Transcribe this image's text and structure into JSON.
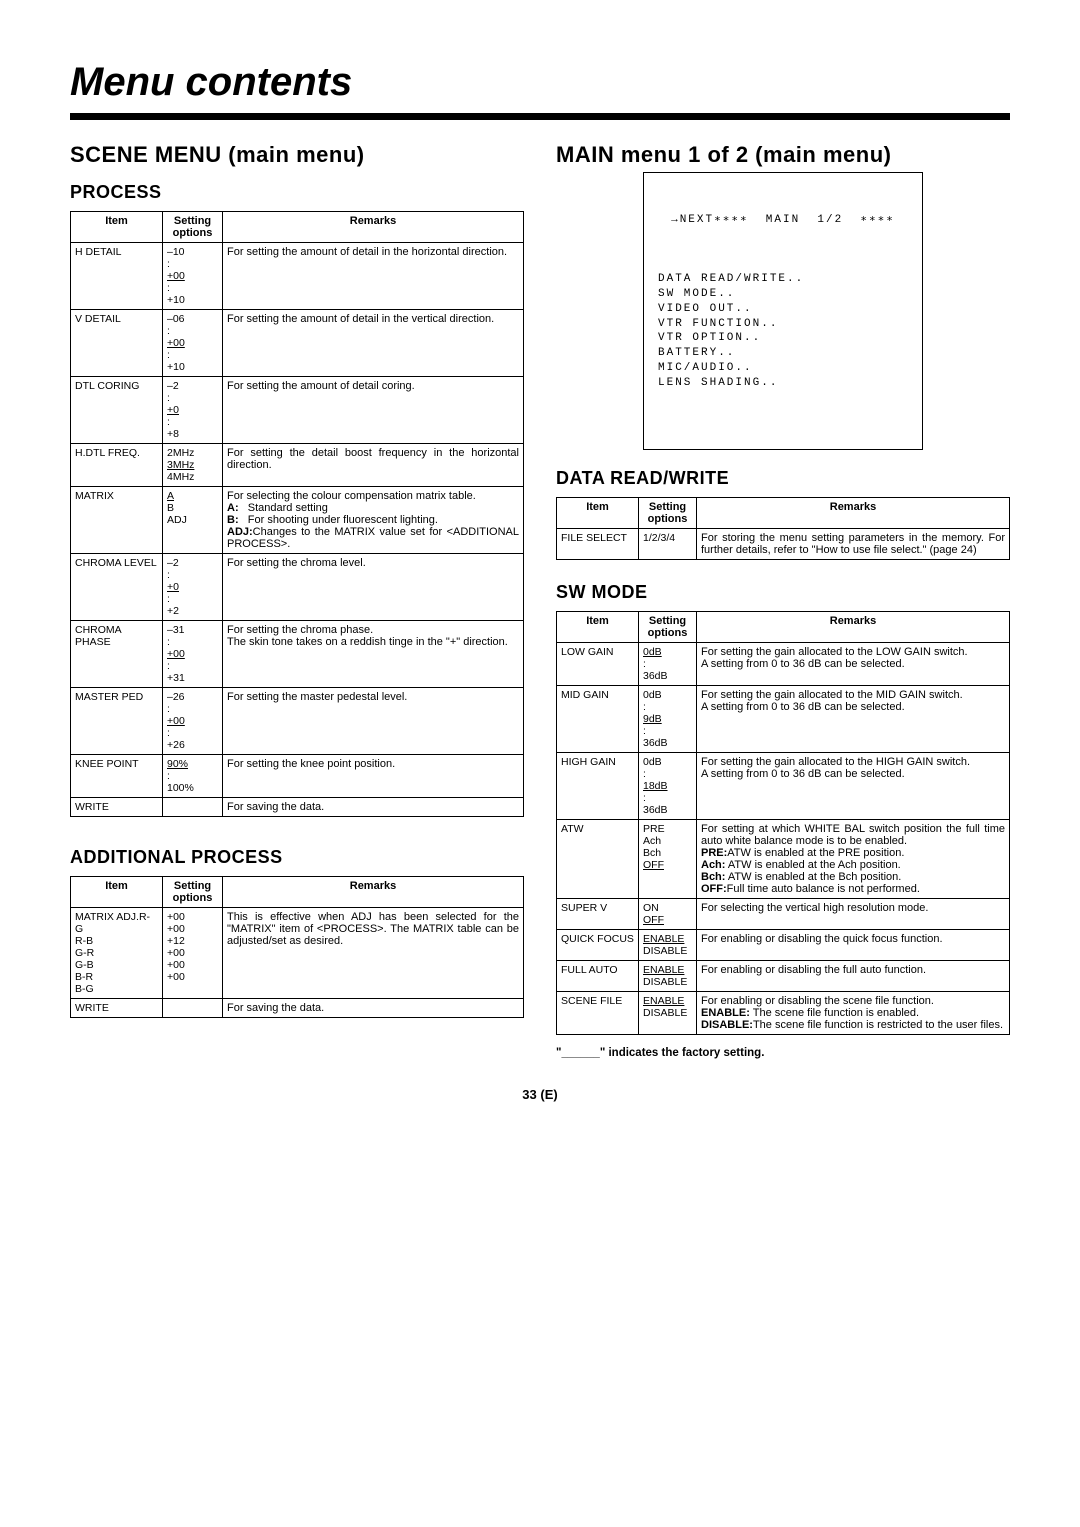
{
  "page": {
    "title": "Menu contents",
    "number": "33 (E)",
    "footnote": "\"______\" indicates the factory setting."
  },
  "left": {
    "heading": "SCENE MENU (main menu)",
    "process": {
      "title": "PROCESS",
      "head": {
        "item": "Item",
        "opt": "Setting options",
        "rem": "Remarks"
      },
      "rows": [
        {
          "item": "H DETAIL",
          "opt": "–10<br>:<br><span class='ul'>+00</span><br>:<br>+10",
          "rem": "For setting the amount of detail in the horizontal direction."
        },
        {
          "item": "V DETAIL",
          "opt": "–06<br>:<br><span class='ul'>+00</span><br>:<br>+10",
          "rem": "For setting the amount of detail in the vertical direction."
        },
        {
          "item": "DTL CORING",
          "opt": "–2<br>:<br><span class='ul'>+0</span><br>:<br>+8",
          "rem": "For setting the amount of detail coring."
        },
        {
          "item": "H.DTL FREQ.",
          "opt": "2MHz<br><span class='ul'>3MHz</span><br>4MHz",
          "rem": "For setting the detail boost frequency in the horizontal direction."
        },
        {
          "item": "MATRIX",
          "opt": "<span class='ul'>A</span><br>B<br>ADJ",
          "rem": "For selecting the colour compensation matrix table.<br><b>A:</b>&nbsp;&nbsp;&nbsp;Standard setting<br><b>B:</b>&nbsp;&nbsp;&nbsp;For shooting under fluorescent lighting.<br><b>ADJ:</b>Changes to the MATRIX value set for &lt;ADDITIONAL PROCESS&gt;."
        },
        {
          "item": "CHROMA LEVEL",
          "opt": "–2<br>:<br><span class='ul'>+0</span><br>:<br>+2",
          "rem": "For setting the chroma level."
        },
        {
          "item": "CHROMA PHASE",
          "opt": "–31<br>:<br><span class='ul'>+00</span><br>:<br>+31",
          "rem": "For setting the chroma phase.<br>The skin tone takes on a reddish tinge in the \"+\" direction."
        },
        {
          "item": "MASTER PED",
          "opt": "–26<br>:<br><span class='ul'>+00</span><br>:<br>+26",
          "rem": "For setting the master pedestal level."
        },
        {
          "item": "KNEE POINT",
          "opt": "<span class='ul'>90%</span><br>:<br>100%",
          "rem": "For setting the knee point position."
        },
        {
          "item": "WRITE",
          "opt": "",
          "rem": "For saving the data."
        }
      ]
    },
    "addproc": {
      "title": "ADDITIONAL PROCESS",
      "head": {
        "item": "Item",
        "opt": "Setting options",
        "rem": "Remarks"
      },
      "rows": [
        {
          "item": "MATRIX ADJ.R-G<br>R-B<br>G-R<br>G-B<br>B-R<br>B-G",
          "opt": "+00<br>+00<br>+12<br>+00<br>+00<br>+00",
          "rem": "This is effective when ADJ has been selected for the \"MATRIX\" item of &lt;PROCESS&gt;. The MATRIX table can be adjusted/set as desired."
        },
        {
          "item": "WRITE",
          "opt": "",
          "rem": "For saving the data."
        }
      ]
    }
  },
  "right": {
    "heading": "MAIN menu 1 of 2 (main menu)",
    "osd": {
      "header": "→NEXT∗∗∗∗  MAIN  1/2  ∗∗∗∗",
      "lines": [
        "DATA READ/WRITE..",
        "SW MODE..",
        "VIDEO OUT..",
        "VTR FUNCTION..",
        "VTR OPTION..",
        "BATTERY..",
        "MIC/AUDIO..",
        "LENS SHADING.."
      ]
    },
    "datarw": {
      "title": "DATA READ/WRITE",
      "head": {
        "item": "Item",
        "opt": "Setting options",
        "rem": "Remarks"
      },
      "rows": [
        {
          "item": "FILE SELECT",
          "opt": "1/2/3/4",
          "rem": "For storing the menu setting parameters in the memory. For further details, refer to \"How to use file select.\" (page 24)"
        }
      ]
    },
    "swmode": {
      "title": "SW MODE",
      "head": {
        "item": "Item",
        "opt": "Setting options",
        "rem": "Remarks"
      },
      "rows": [
        {
          "item": "LOW GAIN",
          "opt": "<span class='ul'>0dB</span><br>:<br>36dB",
          "rem": "For setting the gain allocated to the LOW GAIN switch.<br>A setting from 0 to 36 dB can be selected."
        },
        {
          "item": "MID GAIN",
          "opt": "0dB<br>:<br><span class='ul'>9dB</span><br>:<br>36dB",
          "rem": "For setting the gain allocated to the MID GAIN switch.<br>A setting from 0 to 36 dB can be selected."
        },
        {
          "item": "HIGH GAIN",
          "opt": "0dB<br>:<br><span class='ul'>18dB</span><br>:<br>36dB",
          "rem": "For setting the gain allocated to the HIGH GAIN switch.<br>A setting from 0 to 36 dB can be selected."
        },
        {
          "item": "ATW",
          "opt": "PRE<br>Ach<br>Bch<br><span class='ul'>OFF</span>",
          "rem": "For setting at which WHITE BAL switch position the full time auto white balance mode is to be enabled.<br><b>PRE:</b>ATW is enabled at the PRE position.<br><b>Ach:</b> ATW is enabled at the Ach position.<br><b>Bch:</b> ATW is enabled at the Bch position.<br><b>OFF:</b>Full time auto balance is not performed."
        },
        {
          "item": "SUPER V",
          "opt": "ON<br><span class='ul'>OFF</span>",
          "rem": "For selecting the vertical high resolution mode."
        },
        {
          "item": "QUICK FOCUS",
          "opt": "<span class='ul'>ENABLE</span><br>DISABLE",
          "rem": "For enabling or disabling the quick focus function."
        },
        {
          "item": "FULL AUTO",
          "opt": "<span class='ul'>ENABLE</span><br>DISABLE",
          "rem": "For enabling or disabling the full auto function."
        },
        {
          "item": "SCENE FILE",
          "opt": "<span class='ul'>ENABLE</span><br>DISABLE",
          "rem": "For enabling or disabling the scene file function.<br><b>ENABLE:</b> The scene file function is enabled.<br><b>DISABLE:</b>The scene file function is restricted to the user files."
        }
      ]
    }
  }
}
